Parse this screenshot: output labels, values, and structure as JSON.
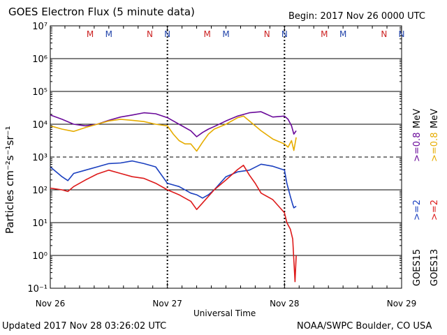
{
  "chart_data": {
    "type": "line",
    "title": "GOES Electron Flux (5 minute data)",
    "begin_label": "Begin: 2017 Nov 26 0000 UTC",
    "xlabel": "Universal Time",
    "ylabel": "Particles cm⁻²s⁻¹sr⁻¹",
    "yscale": "log",
    "ylim_exp": [
      -1,
      7
    ],
    "y_ticks": [
      "10⁻¹",
      "10⁰",
      "10¹",
      "10²",
      "10³",
      "10⁴",
      "10⁵",
      "10⁶",
      "10⁷"
    ],
    "xlim_days": [
      0,
      3
    ],
    "x_tick_labels": [
      "Nov 26",
      "Nov 27",
      "Nov 28",
      "Nov 29"
    ],
    "threshold_exp": 3,
    "mn_markers": [
      {
        "day": 0.34,
        "label": "M",
        "color": "#cc2222"
      },
      {
        "day": 0.5,
        "label": "M",
        "color": "#2244aa"
      },
      {
        "day": 0.85,
        "label": "N",
        "color": "#cc2222"
      },
      {
        "day": 1.0,
        "label": "N",
        "color": "#2244aa"
      },
      {
        "day": 1.34,
        "label": "M",
        "color": "#cc2222"
      },
      {
        "day": 1.5,
        "label": "M",
        "color": "#2244aa"
      },
      {
        "day": 1.85,
        "label": "N",
        "color": "#cc2222"
      },
      {
        "day": 2.0,
        "label": "N",
        "color": "#2244aa"
      },
      {
        "day": 2.34,
        "label": "M",
        "color": "#cc2222"
      },
      {
        "day": 2.5,
        "label": "M",
        "color": "#2244aa"
      },
      {
        "day": 2.85,
        "label": "N",
        "color": "#cc2222"
      },
      {
        "day": 3.0,
        "label": "N",
        "color": "#2244aa"
      }
    ],
    "series": [
      {
        "name": ">=0.8 MeV GOES15",
        "color": "#6a0a9a",
        "x": [
          0,
          0.1,
          0.2,
          0.3,
          0.4,
          0.5,
          0.6,
          0.7,
          0.8,
          0.9,
          1.0,
          1.1,
          1.2,
          1.25,
          1.3,
          1.35,
          1.4,
          1.5,
          1.6,
          1.7,
          1.8,
          1.9,
          2.0,
          2.03,
          2.06,
          2.08,
          2.1
        ],
        "y": [
          4.28,
          4.15,
          4.0,
          3.95,
          4.0,
          4.12,
          4.22,
          4.28,
          4.35,
          4.32,
          4.2,
          4.0,
          3.8,
          3.62,
          3.75,
          3.85,
          3.93,
          4.1,
          4.25,
          4.35,
          4.38,
          4.22,
          4.25,
          4.15,
          3.95,
          3.7,
          3.8
        ]
      },
      {
        "name": ">=0.8 MeV GOES13",
        "color": "#e6ac00",
        "x": [
          0,
          0.1,
          0.2,
          0.3,
          0.4,
          0.5,
          0.6,
          0.7,
          0.8,
          0.9,
          1.0,
          1.05,
          1.1,
          1.15,
          1.2,
          1.25,
          1.3,
          1.35,
          1.4,
          1.5,
          1.6,
          1.65,
          1.7,
          1.8,
          1.9,
          2.0,
          2.03,
          2.06,
          2.08,
          2.1
        ],
        "y": [
          3.95,
          3.85,
          3.78,
          3.9,
          4.0,
          4.1,
          4.15,
          4.12,
          4.08,
          4.0,
          3.95,
          3.7,
          3.5,
          3.4,
          3.4,
          3.18,
          3.45,
          3.7,
          3.85,
          4.0,
          4.2,
          4.25,
          4.1,
          3.8,
          3.55,
          3.4,
          3.3,
          3.5,
          3.2,
          3.6
        ]
      },
      {
        "name": ">=2 MeV GOES15",
        "color": "#1a3fbf",
        "x": [
          0,
          0.1,
          0.15,
          0.2,
          0.3,
          0.4,
          0.5,
          0.6,
          0.7,
          0.8,
          0.9,
          1.0,
          1.1,
          1.2,
          1.25,
          1.3,
          1.35,
          1.4,
          1.5,
          1.6,
          1.7,
          1.8,
          1.9,
          2.0,
          2.02,
          2.05,
          2.07,
          2.08,
          2.1
        ],
        "y": [
          2.7,
          2.4,
          2.28,
          2.5,
          2.6,
          2.7,
          2.8,
          2.82,
          2.88,
          2.8,
          2.7,
          2.2,
          2.1,
          1.9,
          1.85,
          1.75,
          1.85,
          2.0,
          2.4,
          2.55,
          2.6,
          2.78,
          2.72,
          2.6,
          2.2,
          1.8,
          1.55,
          1.45,
          1.5
        ]
      },
      {
        "name": ">=2 MeV GOES13",
        "color": "#dd1a1a",
        "x": [
          0,
          0.1,
          0.15,
          0.2,
          0.3,
          0.4,
          0.5,
          0.6,
          0.7,
          0.8,
          0.9,
          1.0,
          1.1,
          1.15,
          1.2,
          1.25,
          1.3,
          1.4,
          1.5,
          1.6,
          1.65,
          1.7,
          1.75,
          1.8,
          1.9,
          2.0,
          2.02,
          2.05,
          2.07,
          2.09,
          2.1
        ],
        "y": [
          2.05,
          2.0,
          1.95,
          2.1,
          2.3,
          2.48,
          2.6,
          2.5,
          2.4,
          2.35,
          2.2,
          2.0,
          1.85,
          1.75,
          1.65,
          1.4,
          1.6,
          2.0,
          2.3,
          2.62,
          2.75,
          2.45,
          2.2,
          1.9,
          1.7,
          1.3,
          1.0,
          0.8,
          0.5,
          -0.8,
          0.0
        ]
      }
    ]
  },
  "right_legend": {
    "labels": [
      {
        "text": "GOES13",
        "color": "#000000"
      },
      {
        "text": ">=2",
        "color": "#dd1a1a"
      },
      {
        "text": ">=0.8",
        "color": "#e6ac00"
      },
      {
        "text": "MeV",
        "color": "#000000"
      },
      {
        "text": "GOES15",
        "color": "#000000"
      },
      {
        "text": ">=2",
        "color": "#1a3fbf"
      },
      {
        "text": ">=0.8",
        "color": "#6a0a9a"
      },
      {
        "text": "MeV",
        "color": "#000000"
      }
    ]
  },
  "footer": {
    "updated": "Updated 2017 Nov 28 03:26:02 UTC",
    "source": "NOAA/SWPC Boulder, CO USA"
  }
}
